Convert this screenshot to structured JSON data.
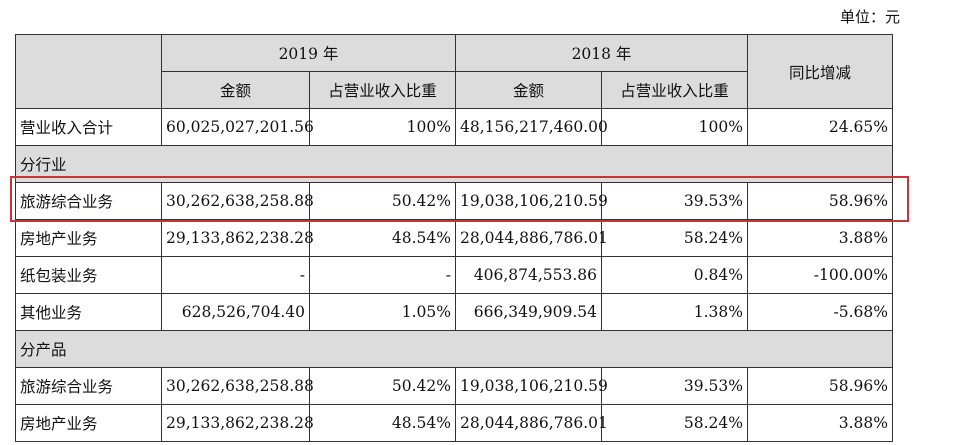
{
  "unit_label": "单位：元",
  "headers": {
    "year_2019": "2019 年",
    "year_2018": "2018 年",
    "amount": "金额",
    "ratio": "占营业收入比重",
    "yoy": "同比增减"
  },
  "total": {
    "label": "营业收入合计",
    "amt2019": "60,025,027,201.56",
    "pct2019": "100%",
    "amt2018": "48,156,217,460.00",
    "pct2018": "100%",
    "yoy": "24.65%"
  },
  "sections": {
    "industry": "分行业",
    "product": "分产品"
  },
  "industry_rows": [
    {
      "label": "旅游综合业务",
      "amt2019": "30,262,638,258.88",
      "pct2019": "50.42%",
      "amt2018": "19,038,106,210.59",
      "pct2018": "39.53%",
      "yoy": "58.96%"
    },
    {
      "label": "房地产业务",
      "amt2019": "29,133,862,238.28",
      "pct2019": "48.54%",
      "amt2018": "28,044,886,786.01",
      "pct2018": "58.24%",
      "yoy": "3.88%"
    },
    {
      "label": "纸包装业务",
      "amt2019": "-",
      "pct2019": "-",
      "amt2018": "406,874,553.86",
      "pct2018": "0.84%",
      "yoy": "-100.00%"
    },
    {
      "label": "其他业务",
      "amt2019": "628,526,704.40",
      "pct2019": "1.05%",
      "amt2018": "666,349,909.54",
      "pct2018": "1.38%",
      "yoy": "-5.68%"
    }
  ],
  "product_rows": [
    {
      "label": "旅游综合业务",
      "amt2019": "30,262,638,258.88",
      "pct2019": "50.42%",
      "amt2018": "19,038,106,210.59",
      "pct2018": "39.53%",
      "yoy": "58.96%"
    },
    {
      "label": "房地产业务",
      "amt2019": "29,133,862,238.28",
      "pct2019": "48.54%",
      "amt2018": "28,044,886,786.01",
      "pct2018": "58.24%",
      "yoy": "3.88%"
    }
  ],
  "colors": {
    "header_bg": "#dcdcdc",
    "highlight": "#c8343e"
  }
}
